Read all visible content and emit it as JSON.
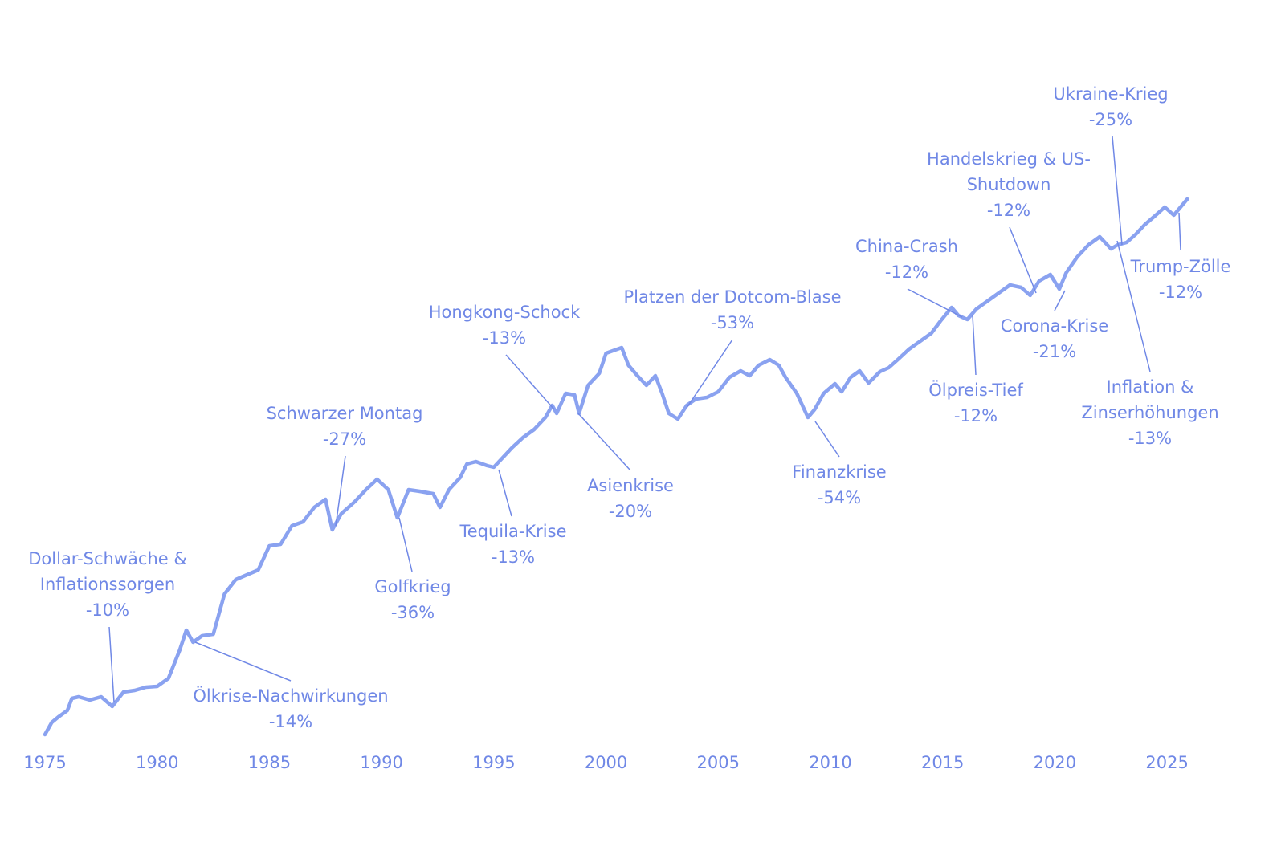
{
  "chart_data": {
    "type": "line",
    "series": [
      {
        "color": "#8aa2f0",
        "x": [
          1975,
          1975.3,
          1975.6,
          1976,
          1976.2,
          1976.5,
          1977,
          1977.5,
          1978,
          1978.5,
          1979,
          1979.5,
          1980,
          1980.5,
          1981,
          1981.3,
          1981.6,
          1982,
          1982.5,
          1983,
          1983.5,
          1984,
          1984.5,
          1985,
          1985.5,
          1986,
          1986.5,
          1987,
          1987.5,
          1987.8,
          1988.2,
          1988.8,
          1989.3,
          1989.8,
          1990.3,
          1990.7,
          1991.2,
          1991.7,
          1992.3,
          1992.6,
          1993,
          1993.5,
          1993.8,
          1994.2,
          1994.7,
          1995,
          1995.4,
          1995.8,
          1996.3,
          1996.8,
          1997.3,
          1997.6,
          1997.8,
          1998.2,
          1998.6,
          1998.8,
          1999.2,
          1999.7,
          2000,
          2000.3,
          2000.7,
          2001,
          2001.4,
          2001.8,
          2002.2,
          2002.5,
          2002.8,
          2003.2,
          2003.6,
          2004,
          2004.5,
          2005,
          2005.5,
          2006,
          2006.4,
          2006.8,
          2007.3,
          2007.7,
          2008,
          2008.5,
          2009,
          2009.3,
          2009.7,
          2010.2,
          2010.5,
          2010.9,
          2011.3,
          2011.7,
          2012.2,
          2012.6,
          2013,
          2013.5,
          2014,
          2014.5,
          2014.9,
          2015.4,
          2015.7,
          2016.1,
          2016.5,
          2017,
          2017.5,
          2018,
          2018.5,
          2018.9,
          2019.3,
          2019.8,
          2020.2,
          2020.5,
          2021,
          2021.5,
          2022,
          2022.5,
          2022.8,
          2023.2,
          2023.6,
          2024,
          2024.5,
          2024.9,
          2025.3,
          2025.6,
          2025.9
        ],
        "values": [
          15,
          30,
          37,
          45,
          60,
          62,
          58,
          62,
          50,
          68,
          70,
          74,
          75,
          85,
          120,
          145,
          130,
          138,
          140,
          190,
          208,
          214,
          220,
          250,
          252,
          275,
          280,
          298,
          308,
          270,
          290,
          305,
          320,
          333,
          320,
          285,
          320,
          318,
          315,
          298,
          320,
          335,
          352,
          355,
          350,
          348,
          360,
          372,
          385,
          395,
          410,
          425,
          415,
          440,
          438,
          415,
          450,
          465,
          490,
          493,
          497,
          475,
          462,
          450,
          462,
          440,
          415,
          408,
          425,
          433,
          435,
          442,
          460,
          468,
          462,
          475,
          482,
          475,
          460,
          440,
          410,
          420,
          440,
          452,
          442,
          460,
          468,
          453,
          467,
          472,
          482,
          495,
          505,
          515,
          530,
          547,
          537,
          532,
          545,
          555,
          565,
          575,
          572,
          562,
          580,
          588,
          570,
          590,
          610,
          625,
          635,
          620,
          625,
          628,
          638,
          650,
          662,
          672,
          662,
          672,
          682
        ]
      }
    ],
    "xlim": [
      1975,
      2027
    ],
    "xticks": [
      1975,
      1980,
      1985,
      1990,
      1995,
      2000,
      2005,
      2010,
      2015,
      2020,
      2025
    ],
    "ylim": [
      0,
      700
    ],
    "annotations": [
      {
        "lines": [
          "Dollar-Schwäche &",
          "Inflationssorgen"
        ],
        "drawdown": {
          "value": -10,
          "label": "-10%"
        }
      },
      {
        "lines": [
          "Ölkrise-Nachwirkungen"
        ],
        "drawdown": {
          "value": -14,
          "label": "-14%"
        }
      },
      {
        "lines": [
          "Schwarzer Montag"
        ],
        "drawdown": {
          "value": -27,
          "label": "-27%"
        }
      },
      {
        "lines": [
          "Golfkrieg"
        ],
        "drawdown": {
          "value": -36,
          "label": "-36%"
        }
      },
      {
        "lines": [
          "Hongkong-Schock"
        ],
        "drawdown": {
          "value": -13,
          "label": "-13%"
        }
      },
      {
        "lines": [
          "Tequila-Krise"
        ],
        "drawdown": {
          "value": -13,
          "label": "-13%"
        }
      },
      {
        "lines": [
          "Asienkrise"
        ],
        "drawdown": {
          "value": -20,
          "label": "-20%"
        }
      },
      {
        "lines": [
          "Platzen der Dotcom-Blase"
        ],
        "drawdown": {
          "value": -53,
          "label": "-53%"
        }
      },
      {
        "lines": [
          "Finanzkrise"
        ],
        "drawdown": {
          "value": -54,
          "label": "-54%"
        }
      },
      {
        "lines": [
          "China-Crash"
        ],
        "drawdown": {
          "value": -12,
          "label": "-12%"
        }
      },
      {
        "lines": [
          "Ölpreis-Tief"
        ],
        "drawdown": {
          "value": -12,
          "label": "-12%"
        }
      },
      {
        "lines": [
          "Handelskrieg & US-",
          "Shutdown"
        ],
        "drawdown": {
          "value": -12,
          "label": "-12%"
        }
      },
      {
        "lines": [
          "Corona-Krise"
        ],
        "drawdown": {
          "value": -21,
          "label": "-21%"
        }
      },
      {
        "lines": [
          "Ukraine-Krieg"
        ],
        "drawdown": {
          "value": -25,
          "label": "-25%"
        }
      },
      {
        "lines": [
          "Inflation &",
          "Zinserhöhungen"
        ],
        "drawdown": {
          "value": -13,
          "label": "-13%"
        }
      },
      {
        "lines": [
          "Trump-Zölle"
        ],
        "drawdown": {
          "value": -12,
          "label": "-12%"
        }
      }
    ]
  }
}
